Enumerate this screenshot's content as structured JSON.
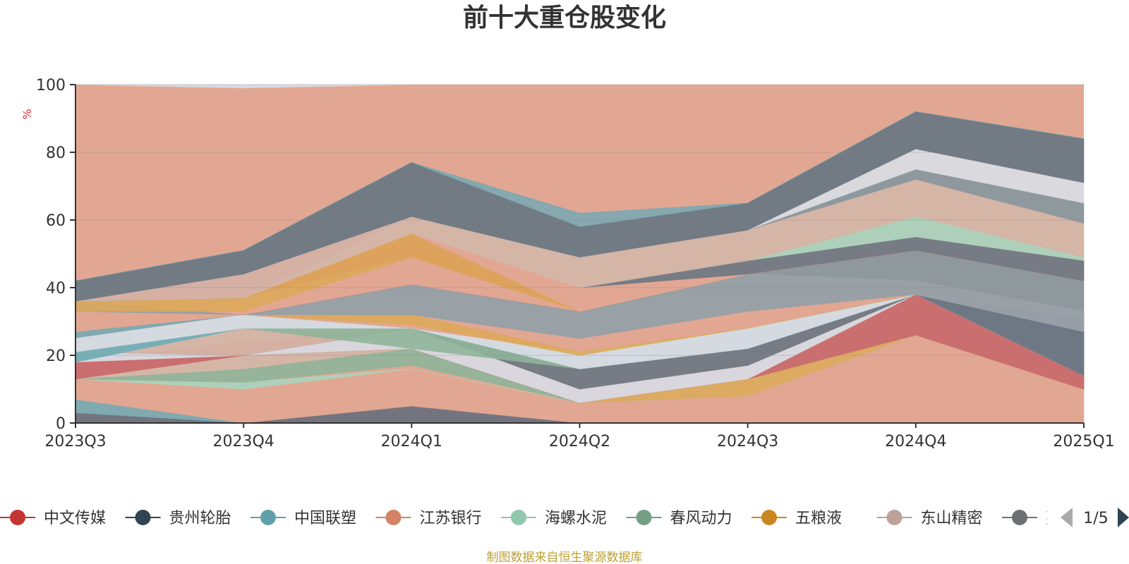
{
  "chart_data": {
    "type": "area",
    "title": "前十大重仓股变化",
    "ylabel": "%",
    "ylim": [
      0,
      100
    ],
    "yticks": [
      "0",
      "20",
      "40",
      "60",
      "80",
      "100"
    ],
    "categories": [
      "2023Q3",
      "2023Q4",
      "2024Q1",
      "2024Q2",
      "2024Q3",
      "2024Q4",
      "2025Q1"
    ],
    "background_color": "#e2a792",
    "bands": [
      {
        "color": "#5f6b7a",
        "opacity": 0.85,
        "top": [
          3,
          0,
          5,
          0,
          0,
          0,
          0
        ],
        "bottom": [
          0,
          0,
          0,
          0,
          0,
          0,
          0
        ]
      },
      {
        "color": "#6fa9b5",
        "opacity": 0.85,
        "top": [
          7,
          0,
          0,
          0,
          0,
          0,
          0
        ],
        "bottom": [
          3,
          0,
          0,
          0,
          0,
          0,
          0
        ]
      },
      {
        "color": "#e2a792",
        "opacity": 1,
        "top": [
          13,
          12,
          17,
          6,
          8,
          26,
          10
        ],
        "bottom": [
          7,
          0,
          5,
          0,
          0,
          0,
          0
        ]
      },
      {
        "color": "#a8d5bf",
        "opacity": 0.9,
        "top": [
          13,
          12,
          16,
          6,
          8,
          26,
          10
        ],
        "bottom": [
          13,
          10,
          16,
          6,
          8,
          26,
          10
        ]
      },
      {
        "color": "#8fb59a",
        "opacity": 0.9,
        "top": [
          13,
          16,
          22,
          6,
          8,
          26,
          10
        ],
        "bottom": [
          13,
          12,
          17,
          6,
          8,
          26,
          10
        ]
      },
      {
        "color": "#d4b7a8",
        "opacity": 0.9,
        "top": [
          13,
          20,
          22,
          6,
          13,
          26,
          14
        ],
        "bottom": [
          13,
          16,
          22,
          6,
          8,
          26,
          10
        ]
      },
      {
        "color": "#dda85a",
        "opacity": 0.9,
        "top": [
          13,
          20,
          22,
          6,
          13,
          26,
          14
        ],
        "bottom": [
          13,
          20,
          22,
          6,
          8,
          26,
          10
        ]
      },
      {
        "color": "#7d858d",
        "opacity": 0.9,
        "top": [
          21,
          20,
          22,
          6,
          13,
          38,
          28
        ],
        "bottom": [
          13,
          20,
          22,
          6,
          13,
          26,
          10
        ]
      },
      {
        "color": "#d76a6a",
        "opacity": 0.85,
        "top": [
          18,
          24,
          28,
          10,
          17,
          38,
          14
        ],
        "bottom": [
          13,
          20,
          22,
          6,
          13,
          26,
          10
        ]
      },
      {
        "color": "#d9dce3",
        "opacity": 0.95,
        "top": [
          21,
          20,
          28,
          10,
          17,
          38,
          14
        ],
        "bottom": [
          18,
          20,
          22,
          6,
          13,
          38,
          14
        ]
      },
      {
        "color": "#6b7783",
        "opacity": 0.9,
        "top": [
          21,
          20,
          28,
          16,
          22,
          38,
          31
        ],
        "bottom": [
          21,
          20,
          28,
          10,
          17,
          38,
          14
        ]
      },
      {
        "color": "#d4b7a8",
        "opacity": 0.9,
        "top": [
          21,
          32,
          32,
          21,
          28,
          38,
          31
        ],
        "bottom": [
          21,
          20,
          28,
          16,
          22,
          38,
          31
        ]
      },
      {
        "color": "#8fb59a",
        "opacity": 0.9,
        "top": [
          21,
          32,
          32,
          21,
          28,
          38,
          31
        ],
        "bottom": [
          21,
          28,
          22,
          16,
          22,
          38,
          31
        ]
      },
      {
        "color": "#a8d5bf",
        "opacity": 0.9,
        "top": [
          21,
          32,
          32,
          21,
          28,
          38,
          31
        ],
        "bottom": [
          18,
          28,
          28,
          16,
          22,
          38,
          31
        ]
      },
      {
        "color": "#6fa9b5",
        "opacity": 0.85,
        "top": [
          27,
          32,
          28,
          21,
          28,
          38,
          31
        ],
        "bottom": [
          18,
          28,
          28,
          16,
          22,
          38,
          31
        ]
      },
      {
        "color": "#d9dce3",
        "opacity": 0.95,
        "top": [
          25,
          32,
          28,
          21,
          28,
          38,
          31
        ],
        "bottom": [
          21,
          28,
          28,
          16,
          22,
          38,
          31
        ]
      },
      {
        "color": "#e2a792",
        "opacity": 1,
        "top": [
          33,
          32,
          32,
          25,
          33,
          38,
          33
        ],
        "bottom": [
          27,
          32,
          28,
          21,
          28,
          38,
          31
        ]
      },
      {
        "color": "#dda85a",
        "opacity": 0.9,
        "top": [
          33,
          32,
          32,
          21,
          28,
          38,
          31
        ],
        "bottom": [
          33,
          32,
          29,
          20,
          28,
          38,
          31
        ]
      },
      {
        "color": "#8a979e",
        "opacity": 0.95,
        "top": [
          36,
          32,
          41,
          33,
          44,
          51,
          42
        ],
        "bottom": [
          33,
          32,
          32,
          25,
          33,
          38,
          27
        ]
      },
      {
        "color": "#a0a5ab",
        "opacity": 0.6,
        "top": [
          36,
          32,
          41,
          33,
          44,
          42,
          33
        ],
        "bottom": [
          33,
          32,
          32,
          25,
          33,
          38,
          27
        ]
      },
      {
        "color": "#d76a6a",
        "opacity": 0.85,
        "top": [
          36,
          44,
          61,
          33,
          44,
          51,
          42
        ],
        "bottom": [
          36,
          32,
          41,
          33,
          44,
          51,
          42
        ]
      },
      {
        "color": "#e2a792",
        "opacity": 1,
        "top": [
          36,
          37,
          49,
          33,
          44,
          51,
          42
        ],
        "bottom": [
          36,
          32,
          41,
          33,
          44,
          51,
          42
        ]
      },
      {
        "color": "#dda85a",
        "opacity": 0.9,
        "top": [
          36,
          37,
          56,
          33,
          44,
          51,
          42
        ],
        "bottom": [
          33,
          33,
          49,
          33,
          44,
          51,
          42
        ]
      },
      {
        "color": "#e2a792",
        "opacity": 1,
        "top": [
          36,
          37,
          61,
          40,
          48,
          55,
          48
        ],
        "bottom": [
          36,
          37,
          56,
          33,
          44,
          51,
          42
        ]
      },
      {
        "color": "#6b7783",
        "opacity": 0.9,
        "top": [
          36,
          37,
          61,
          40,
          48,
          55,
          48
        ],
        "bottom": [
          36,
          37,
          61,
          40,
          44,
          51,
          42
        ]
      },
      {
        "color": "#a8d5bf",
        "opacity": 0.9,
        "top": [
          36,
          37,
          61,
          40,
          48,
          61,
          49
        ],
        "bottom": [
          36,
          37,
          61,
          40,
          48,
          55,
          48
        ]
      },
      {
        "color": "#d4b7a8",
        "opacity": 0.9,
        "top": [
          36,
          44,
          61,
          49,
          57,
          72,
          59
        ],
        "bottom": [
          36,
          37,
          56,
          40,
          48,
          61,
          49
        ]
      },
      {
        "color": "#8a979e",
        "opacity": 0.95,
        "top": [
          36,
          44,
          61,
          49,
          57,
          75,
          65
        ],
        "bottom": [
          36,
          44,
          61,
          49,
          57,
          72,
          59
        ]
      },
      {
        "color": "#d9dce3",
        "opacity": 0.95,
        "top": [
          36,
          44,
          61,
          49,
          57,
          81,
          71
        ],
        "bottom": [
          36,
          44,
          61,
          49,
          57,
          75,
          65
        ]
      },
      {
        "color": "#6b7783",
        "opacity": 0.95,
        "top": [
          42,
          51,
          77,
          58,
          65,
          92,
          84
        ],
        "bottom": [
          36,
          44,
          61,
          49,
          57,
          81,
          71
        ]
      },
      {
        "color": "#6fa9b5",
        "opacity": 0.8,
        "top": [
          42,
          51,
          77,
          62,
          65,
          92,
          84
        ],
        "bottom": [
          42,
          51,
          77,
          58,
          65,
          92,
          84
        ]
      },
      {
        "color": "#d9dce3",
        "opacity": 1,
        "top": [
          100,
          100,
          100,
          100,
          100,
          100,
          100
        ],
        "bottom": [
          100,
          99,
          100,
          100,
          100,
          100,
          100
        ]
      }
    ],
    "legend": [
      {
        "name": "中文传媒",
        "color": "#c23531"
      },
      {
        "name": "贵州轮胎",
        "color": "#2f4554"
      },
      {
        "name": "中国联塑",
        "color": "#61a0a8"
      },
      {
        "name": "江苏银行",
        "color": "#d48265"
      },
      {
        "name": "海螺水泥",
        "color": "#91c7ae"
      },
      {
        "name": "春风动力",
        "color": "#749f83"
      },
      {
        "name": "五粮液",
        "color": "#ca8622"
      },
      {
        "name": "东山精密",
        "color": "#bda29a"
      },
      {
        "name": "嘉友国际",
        "color": "#6e7074"
      }
    ],
    "legend_page": "1/5",
    "footer": "制图数据来自恒生聚源数据库"
  }
}
